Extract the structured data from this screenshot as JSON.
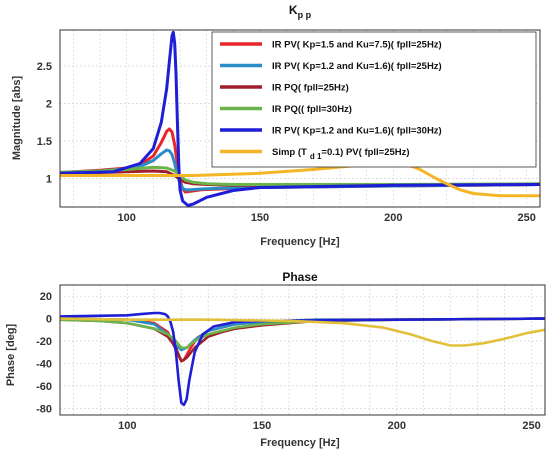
{
  "chart_data": [
    {
      "type": "line",
      "title_main": "K",
      "title_sub": "p p",
      "xlabel": "Frequency [Hz]",
      "ylabel": "Magnitude [abs]",
      "xlim": [
        75,
        255
      ],
      "ylim": [
        0.62,
        2.98
      ],
      "xticks": [
        100,
        150,
        200,
        250
      ],
      "yticks": [
        1,
        1.5,
        2,
        2.5
      ],
      "x_minor_grid": [
        80,
        90,
        110,
        120,
        130,
        140,
        160,
        170,
        180,
        190,
        210,
        220,
        230,
        240
      ],
      "grid": true,
      "legend_position": "top-right",
      "series": [
        {
          "name": "IR  PV( Kp=1.5 and  Ku=7.5)( fpll=25Hz)",
          "color": "#e8262a",
          "x": [
            75,
            90,
            100,
            105,
            110,
            113,
            115,
            116,
            117,
            118,
            119,
            120,
            121,
            122,
            124,
            128,
            135,
            150,
            200,
            255
          ],
          "y": [
            1.08,
            1.11,
            1.14,
            1.18,
            1.3,
            1.48,
            1.63,
            1.66,
            1.62,
            1.45,
            1.2,
            0.98,
            0.86,
            0.82,
            0.83,
            0.85,
            0.86,
            0.88,
            0.9,
            0.92
          ]
        },
        {
          "name": "IR  PV( Kp=1.2 and   Ku=1.6)( fpll=25Hz)",
          "color": "#2a8dc8",
          "x": [
            75,
            90,
            100,
            105,
            110,
            113,
            115,
            116,
            117,
            118,
            119,
            120,
            121,
            122,
            124,
            128,
            135,
            150,
            200,
            255
          ],
          "y": [
            1.08,
            1.1,
            1.13,
            1.16,
            1.24,
            1.33,
            1.38,
            1.37,
            1.32,
            1.2,
            1.05,
            0.93,
            0.87,
            0.85,
            0.85,
            0.86,
            0.87,
            0.88,
            0.9,
            0.92
          ]
        },
        {
          "name": "IR  PQ( fpll=25Hz)",
          "color": "#a11f2a",
          "x": [
            75,
            90,
            100,
            110,
            115,
            118,
            120,
            122,
            125,
            130,
            140,
            150,
            200,
            255
          ],
          "y": [
            1.07,
            1.08,
            1.09,
            1.1,
            1.09,
            1.04,
            0.99,
            0.95,
            0.93,
            0.92,
            0.91,
            0.91,
            0.91,
            0.92
          ]
        },
        {
          "name": "IR  PQ(( fpll=30Hz)",
          "color": "#6db34b",
          "x": [
            75,
            90,
            100,
            110,
            115,
            118,
            120,
            122,
            125,
            130,
            140,
            150,
            200,
            255
          ],
          "y": [
            1.08,
            1.1,
            1.12,
            1.15,
            1.14,
            1.1,
            1.04,
            0.98,
            0.95,
            0.93,
            0.92,
            0.92,
            0.92,
            0.93
          ]
        },
        {
          "name": "IR  PV( Kp=1.2 and   Ku=1.6)( fpll=30Hz)",
          "color": "#1e1ed6",
          "x": [
            75,
            95,
            105,
            110,
            113,
            115,
            116,
            117,
            117.5,
            118,
            118.5,
            119,
            119.5,
            120,
            121,
            123,
            125,
            130,
            140,
            150,
            200,
            255
          ],
          "y": [
            1.07,
            1.09,
            1.2,
            1.4,
            1.75,
            2.2,
            2.55,
            2.9,
            2.95,
            2.8,
            2.4,
            1.8,
            1.2,
            0.85,
            0.7,
            0.64,
            0.66,
            0.75,
            0.84,
            0.88,
            0.91,
            0.92
          ]
        },
        {
          "name": "Simp (T",
          "name_sub": "d 1",
          "name_rest": "=0.1) PV( fpll=25Hz)",
          "color": "#f4b526",
          "x": [
            75,
            100,
            125,
            150,
            170,
            185,
            195,
            200,
            205,
            210,
            215,
            220,
            225,
            230,
            240,
            255
          ],
          "y": [
            1.04,
            1.04,
            1.04,
            1.07,
            1.12,
            1.17,
            1.2,
            1.21,
            1.19,
            1.12,
            1.02,
            0.93,
            0.85,
            0.8,
            0.77,
            0.77
          ]
        }
      ]
    },
    {
      "type": "line",
      "title": "Phase",
      "xlabel": "Frequency [Hz]",
      "ylabel": "Phase [deg]",
      "xlim": [
        75,
        255
      ],
      "ylim": [
        -86,
        30
      ],
      "xticks": [
        100,
        150,
        200,
        250
      ],
      "yticks": [
        20,
        0,
        -20,
        -40,
        -60,
        -80
      ],
      "x_minor_grid": [
        80,
        90,
        110,
        120,
        130,
        140,
        160,
        170,
        180,
        190,
        210,
        220,
        230,
        240
      ],
      "grid": true,
      "series": [
        {
          "name": "IR  PV( Kp=1.5 and  Ku=7.5)( fpll=25Hz)",
          "color": "#e8262a",
          "x": [
            75,
            100,
            110,
            115,
            118,
            120,
            121,
            123,
            126,
            130,
            140,
            150,
            170,
            200,
            255
          ],
          "y": [
            0,
            -1,
            -4,
            -12,
            -28,
            -38,
            -37,
            -28,
            -17,
            -11,
            -5,
            -3,
            -1,
            -1,
            0
          ]
        },
        {
          "name": "IR  PV( Kp=1.2 and   Ku=1.6)( fpll=25Hz)",
          "color": "#2a8dc8",
          "x": [
            75,
            100,
            110,
            115,
            118,
            120,
            122,
            125,
            130,
            140,
            150,
            170,
            200,
            255
          ],
          "y": [
            0,
            -1,
            -5,
            -14,
            -24,
            -28,
            -26,
            -19,
            -11,
            -5,
            -3,
            -1,
            -1,
            0
          ]
        },
        {
          "name": "IR  PQ( fpll=25Hz)",
          "color": "#a11f2a",
          "x": [
            75,
            90,
            100,
            110,
            115,
            118,
            120,
            122,
            125,
            130,
            135,
            140,
            150,
            170,
            200,
            255
          ],
          "y": [
            -1,
            -2,
            -4,
            -9,
            -16,
            -26,
            -38,
            -35,
            -26,
            -16,
            -12,
            -9,
            -6,
            -2,
            -1,
            0
          ]
        },
        {
          "name": "IR  PQ(( fpll=30Hz)",
          "color": "#6db34b",
          "x": [
            75,
            90,
            100,
            110,
            115,
            118,
            120,
            122,
            125,
            130,
            140,
            150,
            170,
            200,
            255
          ],
          "y": [
            -1,
            -2,
            -4,
            -9,
            -14,
            -20,
            -26,
            -26,
            -20,
            -14,
            -8,
            -5,
            -2,
            -1,
            0
          ]
        },
        {
          "name": "IR  PV( Kp=1.2 and   Ku=1.6)( fpll=30Hz)",
          "color": "#1e1ed6",
          "x": [
            75,
            100,
            105,
            110,
            112,
            114,
            115,
            116,
            117,
            118,
            119,
            120,
            121,
            122,
            123,
            125,
            128,
            132,
            140,
            150,
            200,
            255
          ],
          "y": [
            2,
            3,
            4,
            5,
            5,
            4,
            2,
            -3,
            -12,
            -30,
            -55,
            -75,
            -77,
            -72,
            -55,
            -30,
            -14,
            -7,
            -3,
            -2,
            -1,
            0
          ]
        },
        {
          "name": "Simp (T",
          "name_sub": "d 1",
          "name_rest": "=0.1) PV( fpll=25Hz)",
          "color": "#e2c03a",
          "x": [
            75,
            100,
            130,
            160,
            180,
            195,
            205,
            213,
            220,
            225,
            232,
            240,
            248,
            255
          ],
          "y": [
            0,
            -1,
            -1,
            -2,
            -4,
            -8,
            -14,
            -20,
            -24,
            -24,
            -22,
            -18,
            -13,
            -10
          ]
        }
      ]
    }
  ]
}
